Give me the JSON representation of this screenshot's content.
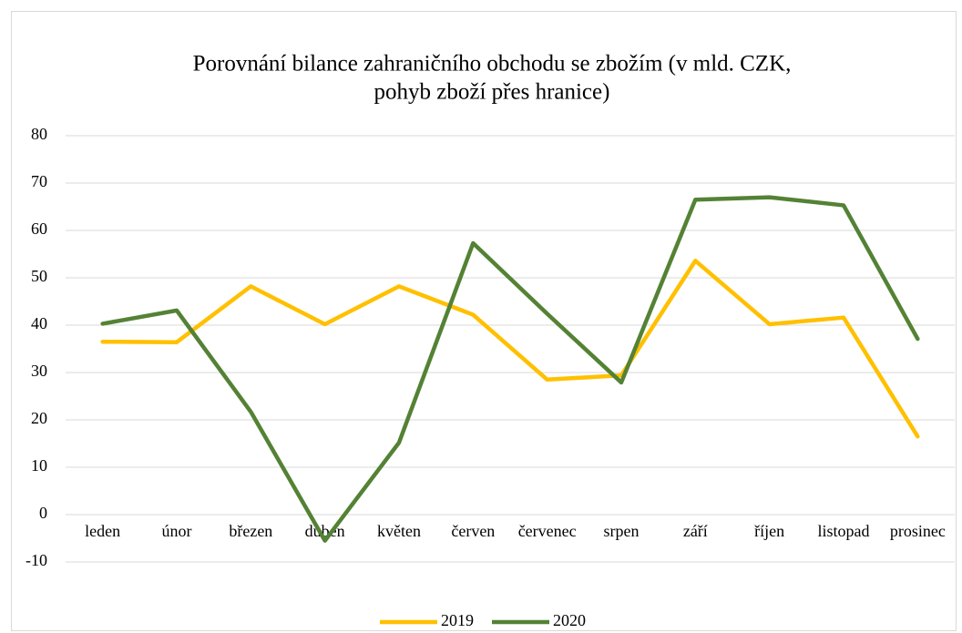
{
  "chart_data": {
    "type": "line",
    "title": [
      "Porovnání bilance zahraničního obchodu se zbožím (v mld. CZK,",
      "pohyb zboží přes hranice)"
    ],
    "categories": [
      "leden",
      "únor",
      "březen",
      "duben",
      "květen",
      "červen",
      "červenec",
      "srpen",
      "září",
      "říjen",
      "listopad",
      "prosinec"
    ],
    "series": [
      {
        "name": "2019",
        "color": "#ffc000",
        "values": [
          36.5,
          36.4,
          48.2,
          40.2,
          48.2,
          42.2,
          28.5,
          29.4,
          53.6,
          40.2,
          41.6,
          16.5
        ]
      },
      {
        "name": "2020",
        "color": "#548235",
        "values": [
          40.3,
          43.1,
          21.7,
          -5.5,
          15.2,
          57.3,
          42.4,
          27.9,
          66.5,
          67.0,
          65.3,
          37.1
        ]
      }
    ],
    "ylim": [
      -10,
      80
    ],
    "yticks": [
      -10,
      0,
      10,
      20,
      30,
      40,
      50,
      60,
      70,
      80
    ],
    "grid": true,
    "legend": "bottom"
  }
}
